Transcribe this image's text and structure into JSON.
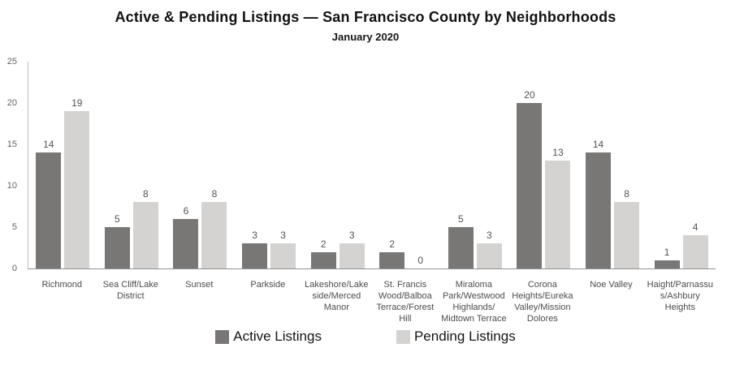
{
  "header": {
    "title": "Active & Pending Listings — San Francisco County by Neighborhoods",
    "subtitle": "January 2020"
  },
  "chart_data": {
    "type": "bar",
    "title": "Active & Pending Listings — San Francisco County by Neighborhoods",
    "subtitle": "January 2020",
    "categories": [
      "Richmond",
      "Sea Cliff/Lake\nDistrict",
      "Sunset",
      "Parkside",
      "Lakeshore/Lake\nside/Merced\nManor",
      "St. Francis\nWood/Balboa\nTerrace/Forest\nHill",
      "Miraloma\nPark/Westwood\nHighlands/\nMidtown Terrace",
      "Corona\nHeights/Eureka\nValley/Mission\nDolores",
      "Noe Valley",
      "Haight/Parnassu\ns/Ashbury\nHeights"
    ],
    "series": [
      {
        "name": "Active Listings",
        "color": "#787776",
        "values": [
          14,
          5,
          6,
          3,
          2,
          2,
          5,
          20,
          14,
          1
        ]
      },
      {
        "name": "Pending Listings",
        "color": "#d4d3d1",
        "values": [
          19,
          8,
          8,
          3,
          3,
          0,
          3,
          13,
          8,
          4
        ]
      }
    ],
    "xlabel": "",
    "ylabel": "",
    "ylim": [
      0,
      25
    ],
    "yticks": [
      0,
      5,
      10,
      15,
      20,
      25
    ],
    "grid": false,
    "value_labels": true,
    "legend_position": "bottom",
    "colors": {
      "axis_line": "#bfbfbf",
      "baseline": "#929292",
      "value_label": "#55524f"
    }
  }
}
